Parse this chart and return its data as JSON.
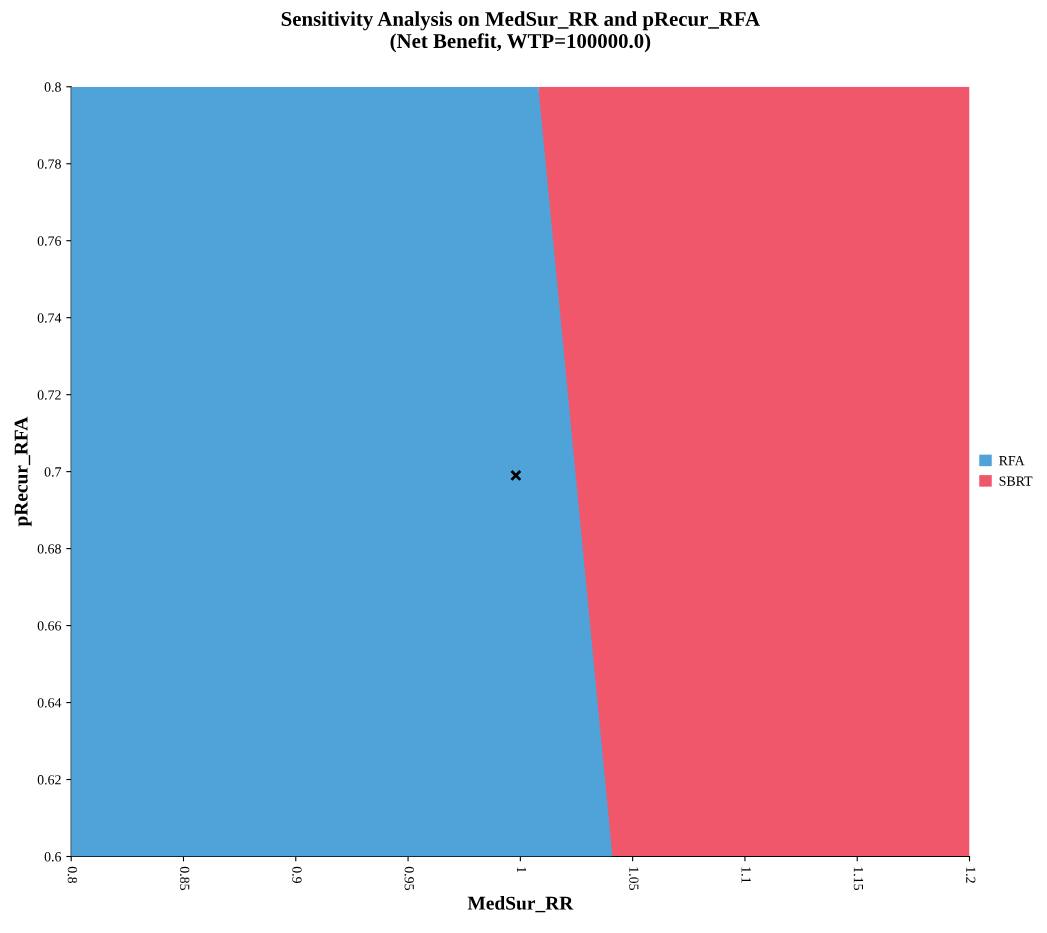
{
  "chart_data": {
    "type": "area",
    "title": "Sensitivity Analysis on MedSur_RR and pRecur_RFA\n(Net Benefit, WTP=100000.0)",
    "xlabel": "MedSur_RR",
    "ylabel": "pRecur_RFA",
    "series": [
      {
        "name": "RFA",
        "color": "#4fa3d9",
        "x": [
          0.8,
          1.008,
          1.041
        ],
        "values": [
          0.8,
          0.8,
          0.6
        ]
      },
      {
        "name": "SBRT",
        "color": "#f0576a",
        "x": [
          1.008,
          1.041,
          1.2
        ],
        "values": [
          0.8,
          0.8,
          0.8
        ]
      },
      {
        "type": "scatter",
        "color": "#000000",
        "marker": "cross",
        "x": [
          0.998
        ],
        "values": [
          0.699
        ]
      }
    ],
    "xlim": [
      0.8,
      1.2
    ],
    "xticks": [
      0.8,
      0.85,
      0.9,
      0.95,
      1,
      1.05,
      1.1,
      1.15,
      1.2
    ],
    "ylim": [
      0.6,
      0.8
    ],
    "yticks": [
      0.6,
      0.62,
      0.64,
      0.66,
      0.68,
      0.7,
      0.72,
      0.74,
      0.76,
      0.78,
      0.8
    ],
    "grid": false,
    "legend": "right"
  }
}
